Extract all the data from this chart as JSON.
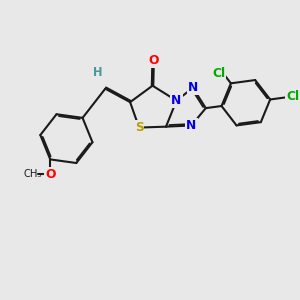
{
  "bg_color": "#e8e8e8",
  "bond_color": "#1a1a1a",
  "bond_width": 1.5,
  "dbo": 0.055,
  "atoms": {
    "S": {
      "color": "#b8a000"
    },
    "O": {
      "color": "#ff0000"
    },
    "N": {
      "color": "#0000ee"
    },
    "Cl": {
      "color": "#00aa00"
    },
    "H": {
      "color": "#4a9898"
    }
  },
  "figsize": [
    3.0,
    3.0
  ],
  "dpi": 100
}
